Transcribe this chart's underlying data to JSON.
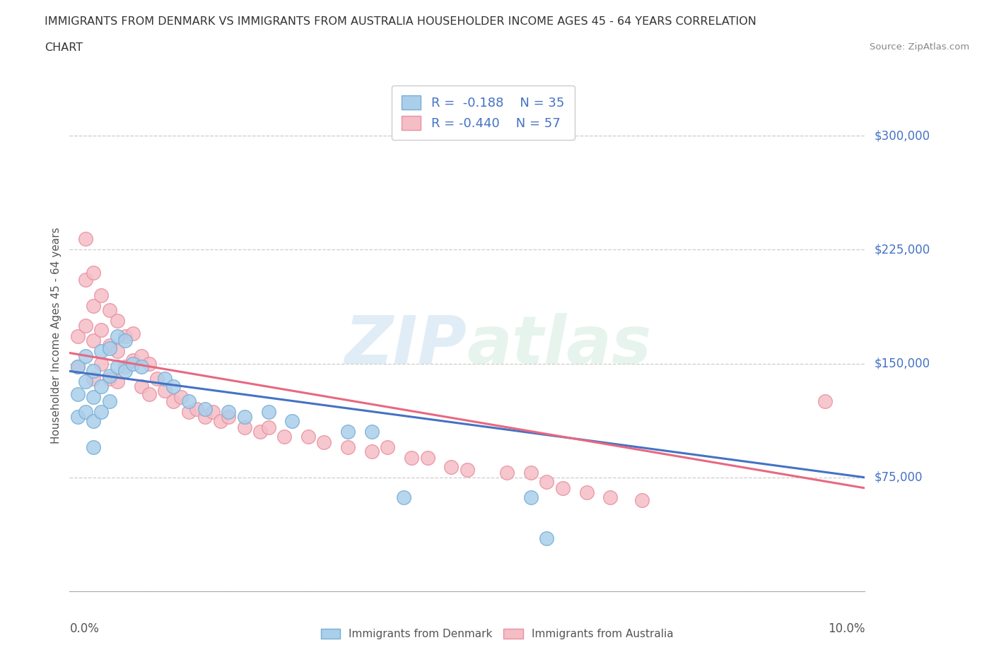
{
  "title_line1": "IMMIGRANTS FROM DENMARK VS IMMIGRANTS FROM AUSTRALIA HOUSEHOLDER INCOME AGES 45 - 64 YEARS CORRELATION",
  "title_line2": "CHART",
  "source": "Source: ZipAtlas.com",
  "ylabel": "Householder Income Ages 45 - 64 years",
  "xlim": [
    0.0,
    0.1
  ],
  "ylim": [
    0,
    337500
  ],
  "yticks": [
    0,
    75000,
    150000,
    225000,
    300000
  ],
  "ytick_labels": [
    "",
    "$75,000",
    "$150,000",
    "$225,000",
    "$300,000"
  ],
  "xticks": [
    0.0,
    0.02,
    0.04,
    0.06,
    0.08,
    0.1
  ],
  "denmark_color": "#aacfeb",
  "denmark_edge": "#7aadd4",
  "australia_color": "#f5bdc6",
  "australia_edge": "#e890a0",
  "regression_denmark_color": "#4472c4",
  "regression_australia_color": "#e86880",
  "legend_r_denmark": "R =  -0.188",
  "legend_n_denmark": "N = 35",
  "legend_r_australia": "R = -0.440",
  "legend_n_australia": "N = 57",
  "ytick_color": "#4472c4",
  "background_color": "#ffffff",
  "grid_color": "#cccccc",
  "watermark": "ZIPatlas",
  "denmark_x": [
    0.001,
    0.001,
    0.001,
    0.002,
    0.002,
    0.002,
    0.003,
    0.003,
    0.003,
    0.003,
    0.004,
    0.004,
    0.004,
    0.005,
    0.005,
    0.005,
    0.006,
    0.006,
    0.007,
    0.007,
    0.008,
    0.009,
    0.012,
    0.013,
    0.015,
    0.017,
    0.02,
    0.022,
    0.025,
    0.028,
    0.035,
    0.038,
    0.042,
    0.058,
    0.06
  ],
  "denmark_y": [
    148000,
    130000,
    115000,
    155000,
    138000,
    118000,
    145000,
    128000,
    112000,
    95000,
    158000,
    135000,
    118000,
    160000,
    142000,
    125000,
    168000,
    148000,
    165000,
    145000,
    150000,
    148000,
    140000,
    135000,
    125000,
    120000,
    118000,
    115000,
    118000,
    112000,
    105000,
    105000,
    62000,
    62000,
    35000
  ],
  "australia_x": [
    0.001,
    0.001,
    0.002,
    0.002,
    0.002,
    0.003,
    0.003,
    0.003,
    0.003,
    0.004,
    0.004,
    0.004,
    0.005,
    0.005,
    0.005,
    0.006,
    0.006,
    0.006,
    0.007,
    0.007,
    0.008,
    0.008,
    0.009,
    0.009,
    0.01,
    0.01,
    0.011,
    0.012,
    0.013,
    0.014,
    0.015,
    0.016,
    0.017,
    0.018,
    0.019,
    0.02,
    0.022,
    0.024,
    0.025,
    0.027,
    0.03,
    0.032,
    0.035,
    0.038,
    0.04,
    0.043,
    0.045,
    0.048,
    0.05,
    0.055,
    0.058,
    0.06,
    0.062,
    0.065,
    0.068,
    0.072,
    0.095
  ],
  "australia_y": [
    168000,
    148000,
    232000,
    205000,
    175000,
    210000,
    188000,
    165000,
    140000,
    195000,
    172000,
    150000,
    185000,
    162000,
    140000,
    178000,
    158000,
    138000,
    168000,
    148000,
    170000,
    152000,
    155000,
    135000,
    150000,
    130000,
    140000,
    132000,
    125000,
    128000,
    118000,
    120000,
    115000,
    118000,
    112000,
    115000,
    108000,
    105000,
    108000,
    102000,
    102000,
    98000,
    95000,
    92000,
    95000,
    88000,
    88000,
    82000,
    80000,
    78000,
    78000,
    72000,
    68000,
    65000,
    62000,
    60000,
    125000
  ]
}
